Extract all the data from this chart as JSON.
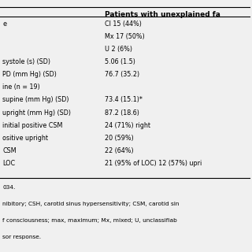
{
  "title": "Patients with unexplained fa",
  "col1_items": [
    "e",
    "",
    "",
    "systole (s) (SD)",
    "PD (mm Hg) (SD)",
    "ine (n = 19)",
    "supine (mm Hg) (SD)",
    "upright (mm Hg) (SD)",
    "initial positive CSM",
    "ositive upright",
    "CSM",
    "LOC"
  ],
  "col2_items": [
    "CI 15 (44%)",
    "Mx 17 (50%)",
    "U 2 (6%)",
    "5.06 (1.5)",
    "76.7 (35.2)",
    "",
    "73.4 (15.1)*",
    "87.2 (18.6)",
    "24 (71%) right",
    "20 (59%)",
    "22 (64%)",
    "21 (95% of LOC) 12 (57%) upri"
  ],
  "footnote_lines": [
    "034.",
    "nibitory; CSH, carotid sinus hypersensitivity; CSM, carotid sin",
    "f consciousness; max, maximum; Mx, mixed; U, unclassifiab",
    "sor response."
  ],
  "background_color": "#f0f0f0"
}
